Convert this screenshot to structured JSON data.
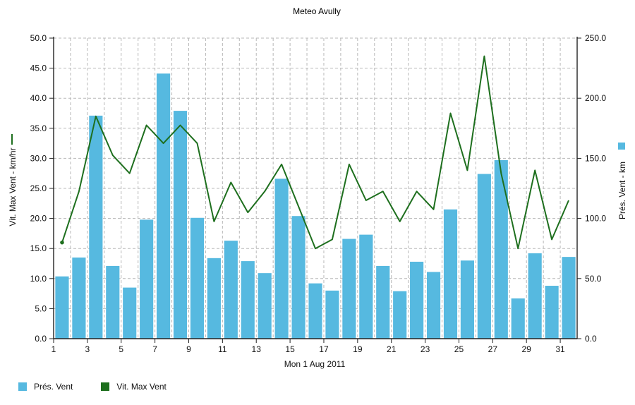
{
  "chart_data": {
    "type": "bar",
    "title": "Meteo  Avully",
    "xlabel": "Mon 1 Aug 2011",
    "ylabel_left": "Vit. Max Vent - km/hr",
    "ylabel_right": "Prés. Vent - km",
    "x": [
      1,
      2,
      3,
      4,
      5,
      6,
      7,
      8,
      9,
      10,
      11,
      12,
      13,
      14,
      15,
      16,
      17,
      18,
      19,
      20,
      21,
      22,
      23,
      24,
      25,
      26,
      27,
      28,
      29,
      30,
      31
    ],
    "x_tick_labels": [
      "1",
      "3",
      "5",
      "7",
      "9",
      "11",
      "13",
      "15",
      "17",
      "19",
      "21",
      "23",
      "25",
      "27",
      "29",
      "31"
    ],
    "y_left": {
      "lim": [
        0,
        50
      ],
      "ticks": [
        "0.0",
        "5.0",
        "10.0",
        "15.0",
        "20.0",
        "25.0",
        "30.0",
        "35.0",
        "40.0",
        "45.0",
        "50.0"
      ]
    },
    "y_right": {
      "lim": [
        0,
        250
      ],
      "ticks": [
        "0.0",
        "50.0",
        "100.0",
        "150.0",
        "200.0",
        "250.0"
      ]
    },
    "grid": true,
    "series": [
      {
        "name": "Prés. Vent",
        "type": "bar",
        "axis": "right",
        "color": "#56b9e0",
        "values": [
          51.8,
          67.5,
          185.5,
          60.5,
          42.5,
          99,
          220.5,
          189.5,
          100.5,
          67,
          81.5,
          64.5,
          54.5,
          133,
          102,
          46,
          40,
          83,
          86.5,
          60.5,
          39.5,
          64,
          55.5,
          107.5,
          65,
          137,
          148.5,
          33.5,
          71,
          44,
          68
        ]
      },
      {
        "name": "Vit. Max Vent",
        "type": "line",
        "axis": "left",
        "color": "#1e6f1e",
        "values": [
          16,
          24.5,
          37,
          30.5,
          27.5,
          35.5,
          32.5,
          35.5,
          32.5,
          19.5,
          26,
          21,
          24.5,
          29,
          22,
          15,
          16.5,
          29,
          23,
          24.5,
          19.5,
          24.5,
          21.5,
          37.5,
          28,
          47,
          27.5,
          15,
          28,
          16.5,
          23
        ]
      }
    ],
    "legend_position": "bottom-left"
  },
  "legend": [
    {
      "label": "Prés. Vent",
      "color": "#56b9e0"
    },
    {
      "label": "Vit. Max Vent",
      "color": "#1e6f1e"
    }
  ]
}
